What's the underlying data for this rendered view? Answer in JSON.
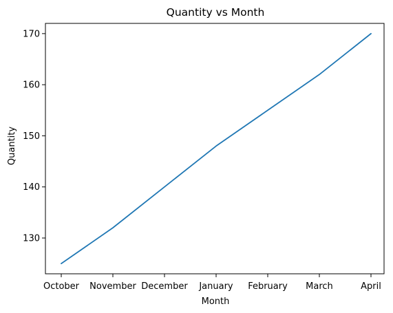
{
  "chart_data": {
    "type": "line",
    "title": "Quantity vs Month",
    "xlabel": "Month",
    "ylabel": "Quantity",
    "categories": [
      "October",
      "November",
      "December",
      "January",
      "February",
      "March",
      "April"
    ],
    "series": [
      {
        "values": [
          125,
          132,
          140,
          148,
          155,
          162,
          170
        ]
      }
    ],
    "ylim": [
      123,
      172
    ],
    "yticks": [
      130,
      140,
      150,
      160,
      170
    ],
    "grid": false,
    "colors": {
      "line": "#1f77b4",
      "axes": "#000000",
      "background": "#ffffff"
    }
  }
}
